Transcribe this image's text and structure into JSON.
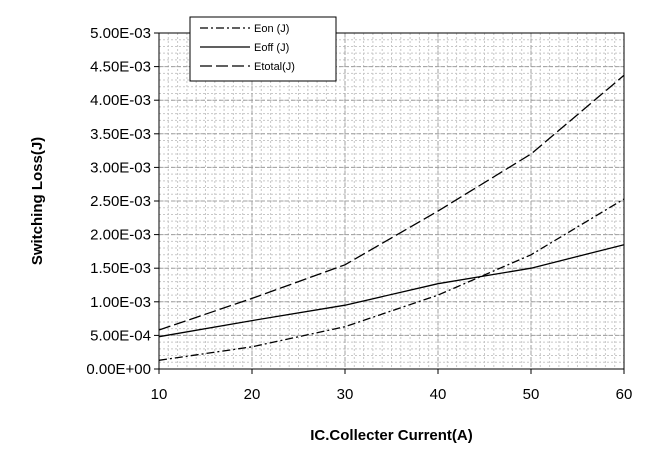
{
  "chart_data": {
    "type": "line",
    "title": "",
    "xlabel": "IC.Collecter Current(A)",
    "ylabel": "Switching Loss(J)",
    "xlim": [
      10,
      60
    ],
    "ylim": [
      0,
      0.005
    ],
    "x_ticks": [
      10,
      20,
      30,
      40,
      50,
      60
    ],
    "x_tick_labels": [
      "10",
      "20",
      "30",
      "40",
      "50",
      "60"
    ],
    "y_ticks": [
      0,
      0.0005,
      0.001,
      0.0015,
      0.002,
      0.0025,
      0.003,
      0.0035,
      0.004,
      0.0045,
      0.005
    ],
    "y_tick_labels": [
      "0.00E+00",
      "5.00E-04",
      "1.00E-03",
      "1.50E-03",
      "2.00E-03",
      "2.50E-03",
      "3.00E-03",
      "3.50E-03",
      "4.00E-03",
      "4.50E-03",
      "5.00E-03"
    ],
    "grid": true,
    "legend_position": "top-left",
    "x": [
      10,
      20,
      30,
      40,
      50,
      60
    ],
    "series": [
      {
        "name": "Eon (J)",
        "style": "dash-dot",
        "color": "#000000",
        "values": [
          0.00013,
          0.00033,
          0.00063,
          0.0011,
          0.0017,
          0.00253
        ]
      },
      {
        "name": "Eoff (J)",
        "style": "solid",
        "color": "#000000",
        "values": [
          0.00048,
          0.00072,
          0.00095,
          0.00127,
          0.0015,
          0.00185
        ]
      },
      {
        "name": "Etotal(J)",
        "style": "long-dash",
        "color": "#000000",
        "values": [
          0.00058,
          0.00105,
          0.00155,
          0.00235,
          0.0032,
          0.00437
        ]
      }
    ]
  }
}
